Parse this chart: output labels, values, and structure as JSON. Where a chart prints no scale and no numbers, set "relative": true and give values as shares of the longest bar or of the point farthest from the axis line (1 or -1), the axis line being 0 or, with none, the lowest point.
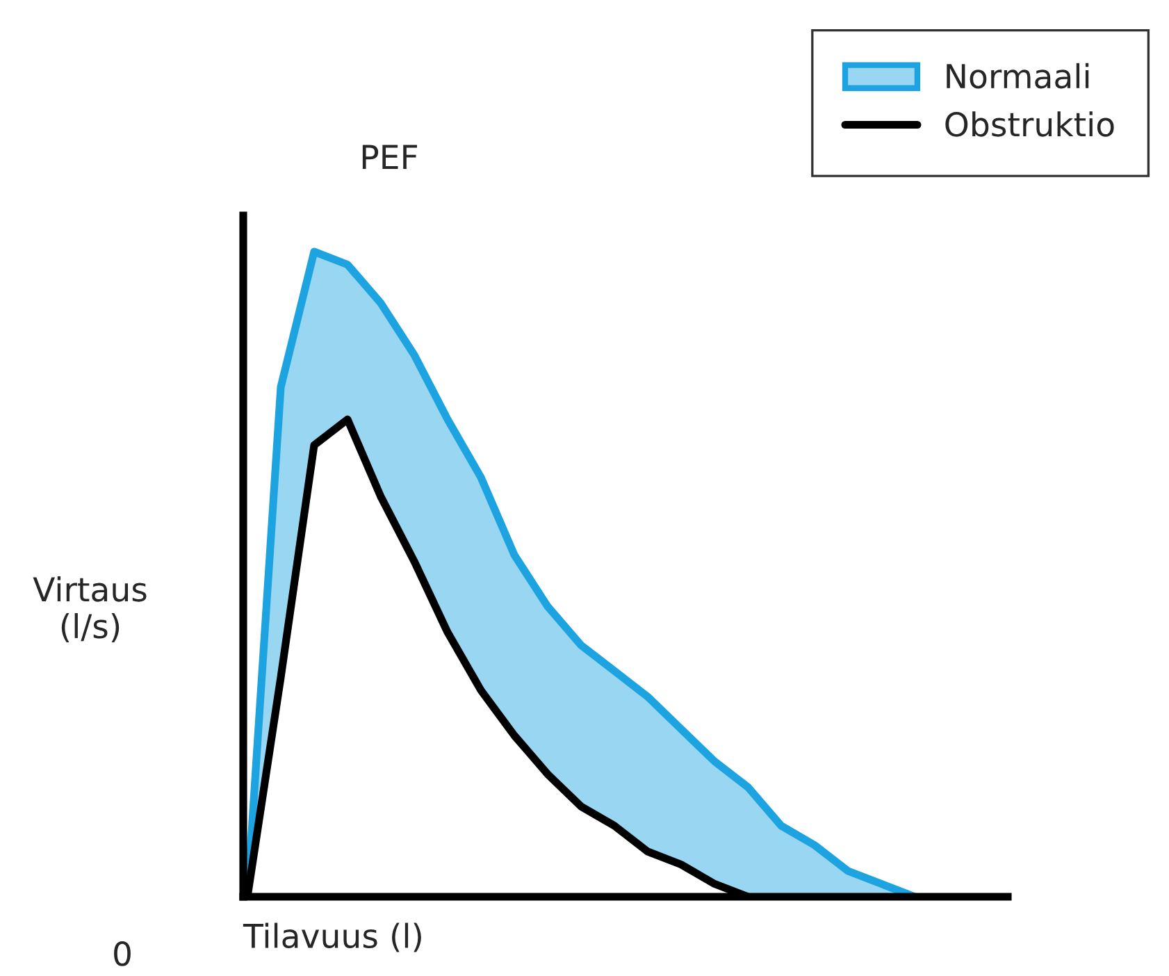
{
  "chart_data": {
    "type": "line",
    "relative": true,
    "xlabel": "Tilavuus (l)",
    "ylabel": "Virtaus\n(l/s)",
    "annotations": [
      "PEF",
      "0"
    ],
    "legend": "top right",
    "marker": "none",
    "line_style": "solid",
    "categories": [
      null,
      null,
      null,
      null,
      null,
      null,
      null,
      null,
      null,
      null,
      null,
      null,
      null,
      null,
      null,
      null,
      null,
      null,
      null,
      null,
      null
    ],
    "series": [
      {
        "name": "Normaali",
        "color": "#1ca3e0",
        "values": [
          0,
          0.79,
          1.0,
          0.98,
          0.92,
          0.84,
          0.74,
          0.65,
          0.53,
          0.45,
          0.39,
          0.35,
          0.31,
          0.26,
          0.21,
          0.17,
          0.11,
          0.08,
          0.04,
          0.02,
          0
        ],
        "lower": [
          0,
          0.34,
          0.7,
          0.74,
          0.62,
          0.52,
          0.41,
          0.32,
          0.25,
          0.19,
          0.14,
          0.11,
          0.07,
          0.05,
          0.02,
          0,
          0,
          0,
          0,
          0,
          0
        ],
        "upper": [
          0,
          0.79,
          1.0,
          0.98,
          0.92,
          0.84,
          0.74,
          0.65,
          0.53,
          0.45,
          0.39,
          0.35,
          0.31,
          0.26,
          0.21,
          0.17,
          0.11,
          0.08,
          0.04,
          0.02,
          0
        ]
      },
      {
        "name": "Obstruktio",
        "color": "#000000",
        "values": [
          0,
          0.34,
          0.7,
          0.74,
          0.62,
          0.52,
          0.41,
          0.32,
          0.25,
          0.19,
          0.14,
          0.11,
          0.07,
          0.05,
          0.02,
          0,
          null,
          null,
          null,
          null,
          null
        ]
      }
    ]
  }
}
